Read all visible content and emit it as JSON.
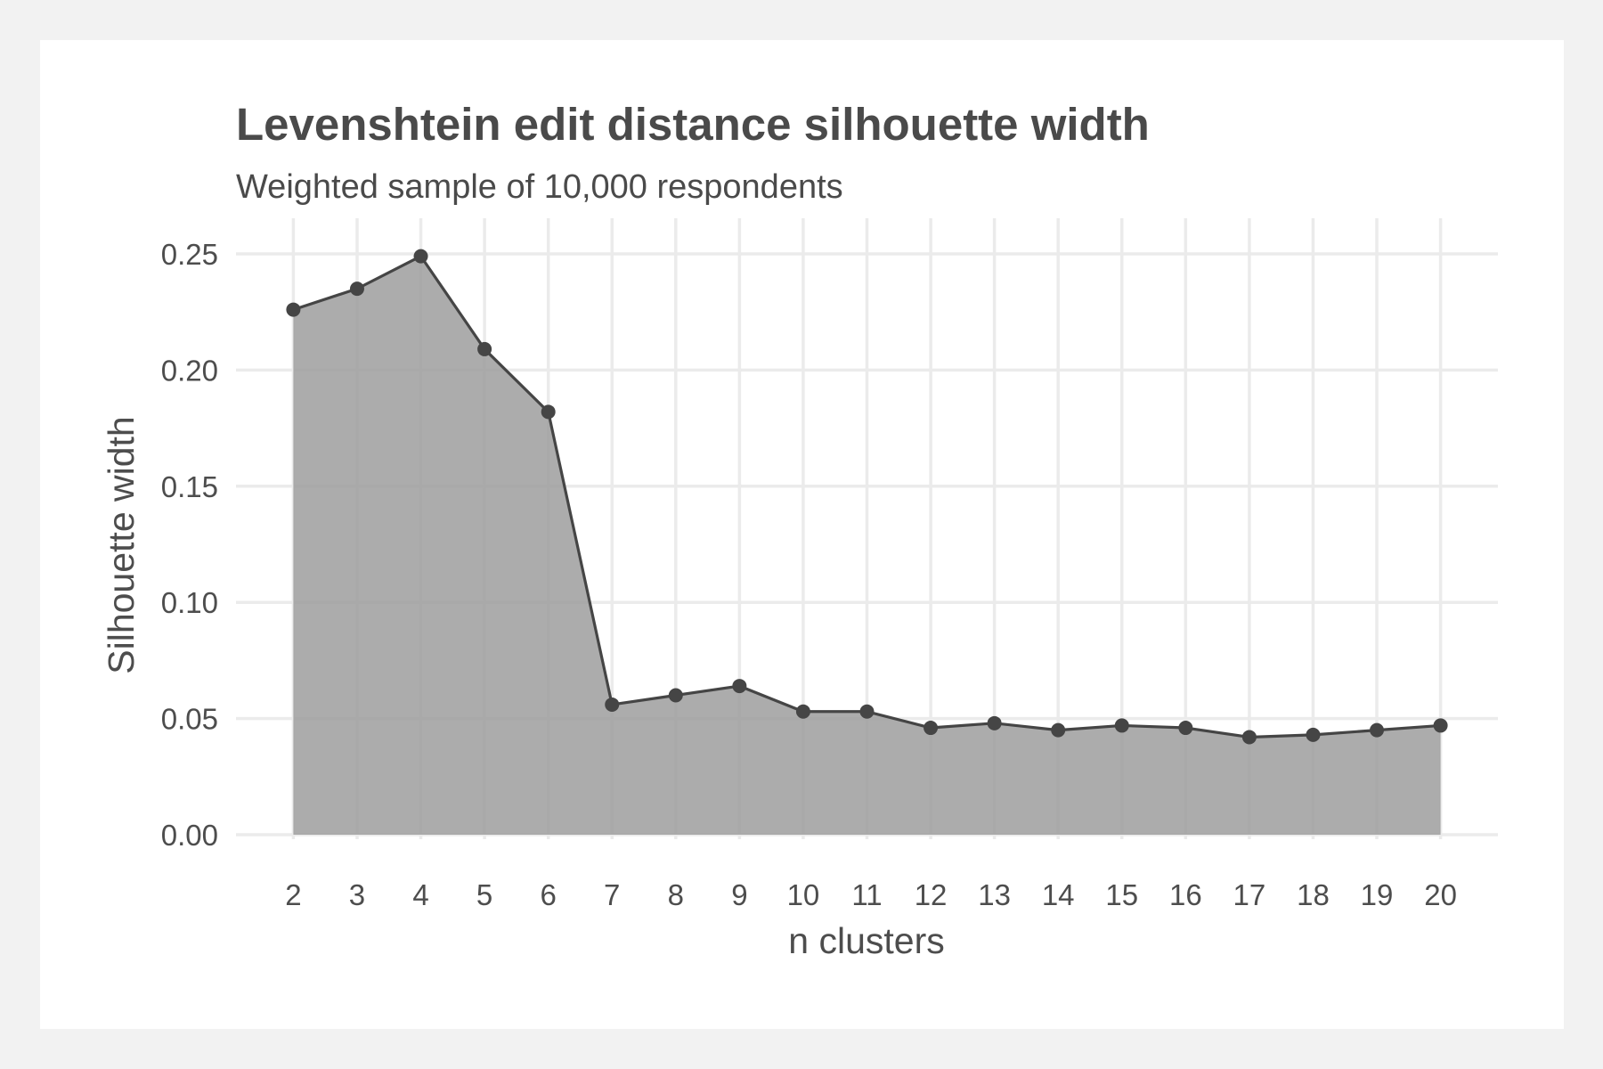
{
  "chart_data": {
    "type": "area",
    "title": "Levenshtein edit distance silhouette width",
    "subtitle": "Weighted sample of 10,000 respondents",
    "xlabel": "n clusters",
    "ylabel": "Silhouette width",
    "x": [
      2,
      3,
      4,
      5,
      6,
      7,
      8,
      9,
      10,
      11,
      12,
      13,
      14,
      15,
      16,
      17,
      18,
      19,
      20
    ],
    "values": [
      0.226,
      0.235,
      0.249,
      0.209,
      0.182,
      0.056,
      0.06,
      0.064,
      0.053,
      0.053,
      0.046,
      0.048,
      0.045,
      0.047,
      0.046,
      0.042,
      0.043,
      0.045,
      0.047
    ],
    "x_ticks": [
      "2",
      "3",
      "4",
      "5",
      "6",
      "7",
      "8",
      "9",
      "10",
      "11",
      "12",
      "13",
      "14",
      "15",
      "16",
      "17",
      "18",
      "19",
      "20"
    ],
    "y_ticks": [
      "0.00",
      "0.05",
      "0.10",
      "0.15",
      "0.20",
      "0.25"
    ],
    "xlim": [
      1.1,
      20.9
    ],
    "ylim": [
      0,
      0.25
    ],
    "grid": true,
    "legend": "none",
    "colors": {
      "background": "#f2f2f2",
      "panel": "#ffffff",
      "grid": "#ebebeb",
      "fill": "#9e9e9e",
      "line": "#454545",
      "text": "#4a4a4a"
    }
  }
}
